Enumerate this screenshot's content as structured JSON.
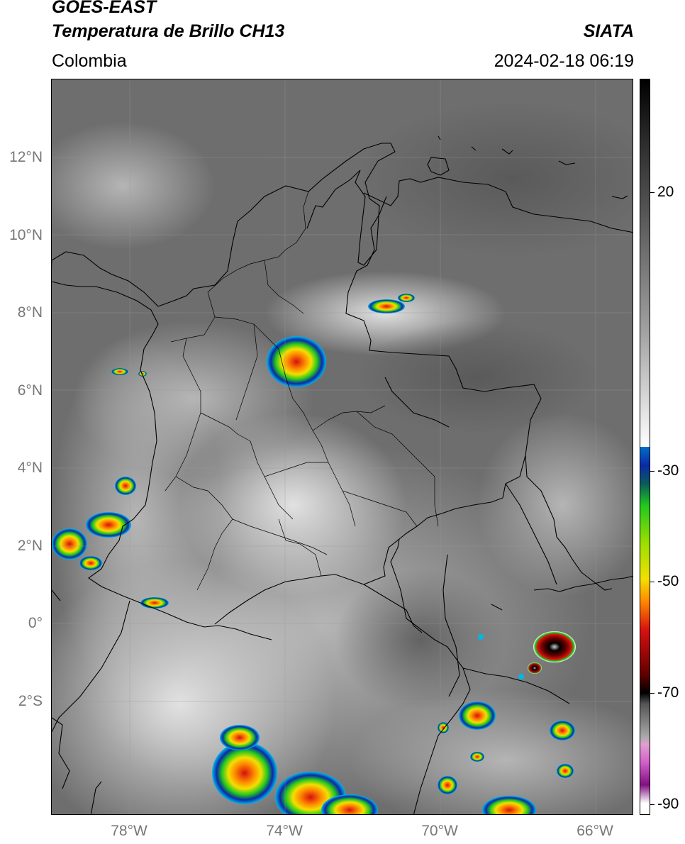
{
  "header": {
    "satellite": "GOES-EAST",
    "product": "Temperatura de Brillo CH13",
    "brand": "SIATA",
    "region": "Colombia",
    "timestamp": "2024-02-18 06:19"
  },
  "axes": {
    "lat_labels": [
      "12°N",
      "10°N",
      "8°N",
      "6°N",
      "4°N",
      "2°N",
      "0°",
      "2°S"
    ],
    "lon_labels": [
      "78°W",
      "74°W",
      "70°W",
      "66°W"
    ],
    "lon_range": [
      -79.95,
      -64.95
    ],
    "lat_range": [
      -4.95,
      13.95
    ]
  },
  "colorbar": {
    "labels": [
      "20",
      "-30",
      "-50",
      "-70",
      "-90"
    ],
    "colors": {
      "white": "#ffffff",
      "cyan": "#00b8e8",
      "blue": "#0a2aa8",
      "green": "#22c81e",
      "yellow": "#f2e000",
      "orange": "#ff8a00",
      "red": "#d61010",
      "darkred": "#600000",
      "black": "#000000",
      "magenta": "#d060c8",
      "purple": "#801080"
    }
  }
}
